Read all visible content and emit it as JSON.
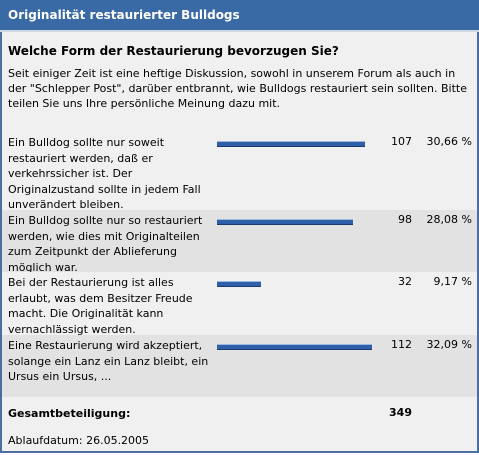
{
  "header": {
    "title": "Originalität restaurierter Bulldogs"
  },
  "question": "Welche Form der Restaurierung bevorzugen Sie?",
  "description": "Seit einiger Zeit ist eine heftige Diskussion, sowohl in unserem Forum als auch in der \"Schlepper Post\", darüber entbrannt, wie Bulldogs restauriert sein sollten. Bitte teilen Sie uns Ihre persönliche Meinung dazu mit.",
  "options": [
    {
      "text": "Ein Bulldog sollte nur soweit restauriert werden, daß er verkehrssicher ist. Der Originalzustand sollte in jedem Fall unverändert bleiben.",
      "votes": 107,
      "percent": "30,66 %"
    },
    {
      "text": "Ein Bulldog sollte nur so restauriert werden, wie dies mit Originalteilen zum Zeitpunkt der Ablieferung möglich war.",
      "votes": 98,
      "percent": "28,08 %"
    },
    {
      "text": "Bei der Restaurierung ist alles erlaubt, was dem Besitzer Freude macht. Die Originalität kann vernachlässigt werden.",
      "votes": 32,
      "percent": "9,17 %"
    },
    {
      "text": "Eine Restaurierung wird akzeptiert, solange ein Lanz ein Lanz bleibt, ein Ursus ein Ursus, ...",
      "votes": 112,
      "percent": "32,09 %"
    }
  ],
  "total": {
    "label": "Gesamtbeteiligung:",
    "value": 349
  },
  "footer": "Ablaufdatum: 26.05.2005"
}
